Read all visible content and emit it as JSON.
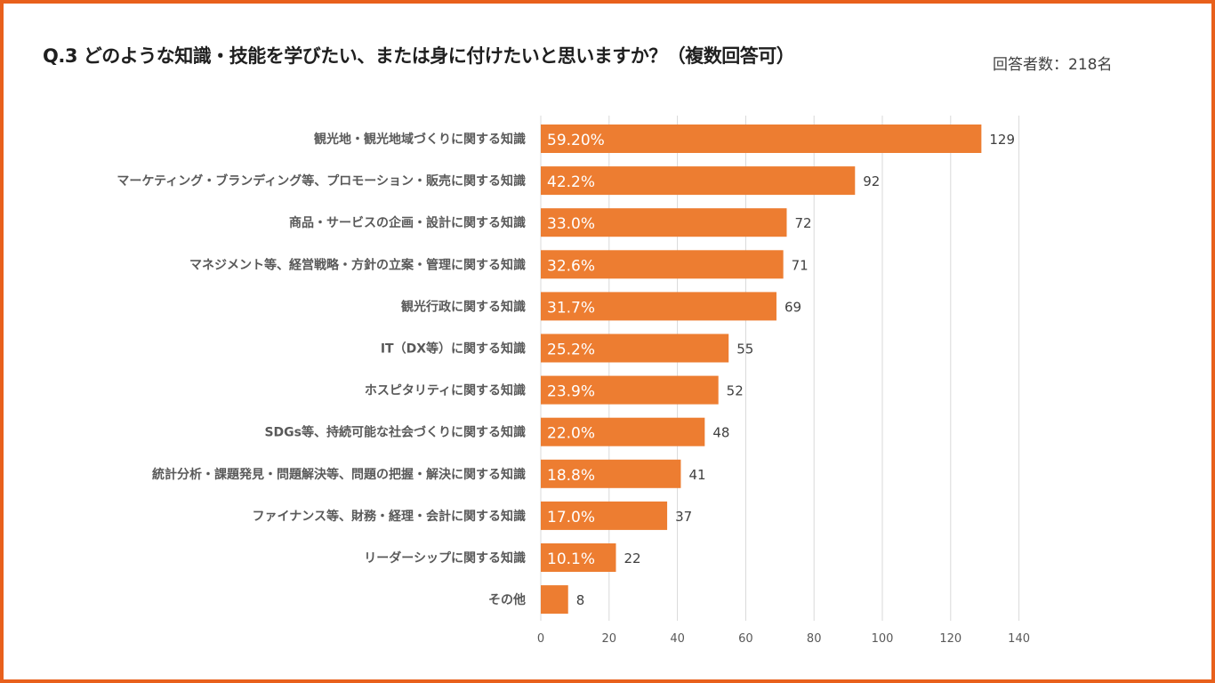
{
  "title": "Q.3 どのような知識・技能を学びたい、または身に付けたいと思いますか？（複数回答可）",
  "respondents": "回答者数：218名",
  "colors": {
    "bar": "#ED7D31",
    "frame": "#E8601C"
  },
  "chart_data": {
    "type": "bar",
    "orientation": "horizontal",
    "categories": [
      "観光地・観光地域づくりに関する知識",
      "マーケティング・ブランディング等、プロモーション・販売に関する知識",
      "商品・サービスの企画・設計に関する知識",
      "マネジメント等、経営戦略・方針の立案・管理に関する知識",
      "観光行政に関する知識",
      "IT（DX等）に関する知識",
      "ホスピタリティに関する知識",
      "SDGs等、持続可能な社会づくりに関する知識",
      "統計分析・課題発見・問題解決等、問題の把握・解決に関する知識",
      "ファイナンス等、財務・経理・会計に関する知識",
      "リーダーシップに関する知識",
      "その他"
    ],
    "values": [
      129,
      92,
      72,
      71,
      69,
      55,
      52,
      48,
      41,
      37,
      22,
      8
    ],
    "percent_labels": [
      "59.20%",
      "42.2%",
      "33.0%",
      "32.6%",
      "31.7%",
      "25.2%",
      "23.9%",
      "22.0%",
      "18.8%",
      "17.0%",
      "10.1%",
      ""
    ],
    "xlim": [
      0,
      140
    ],
    "xticks": [
      0,
      20,
      40,
      60,
      80,
      100,
      120,
      140
    ],
    "grid": true
  }
}
